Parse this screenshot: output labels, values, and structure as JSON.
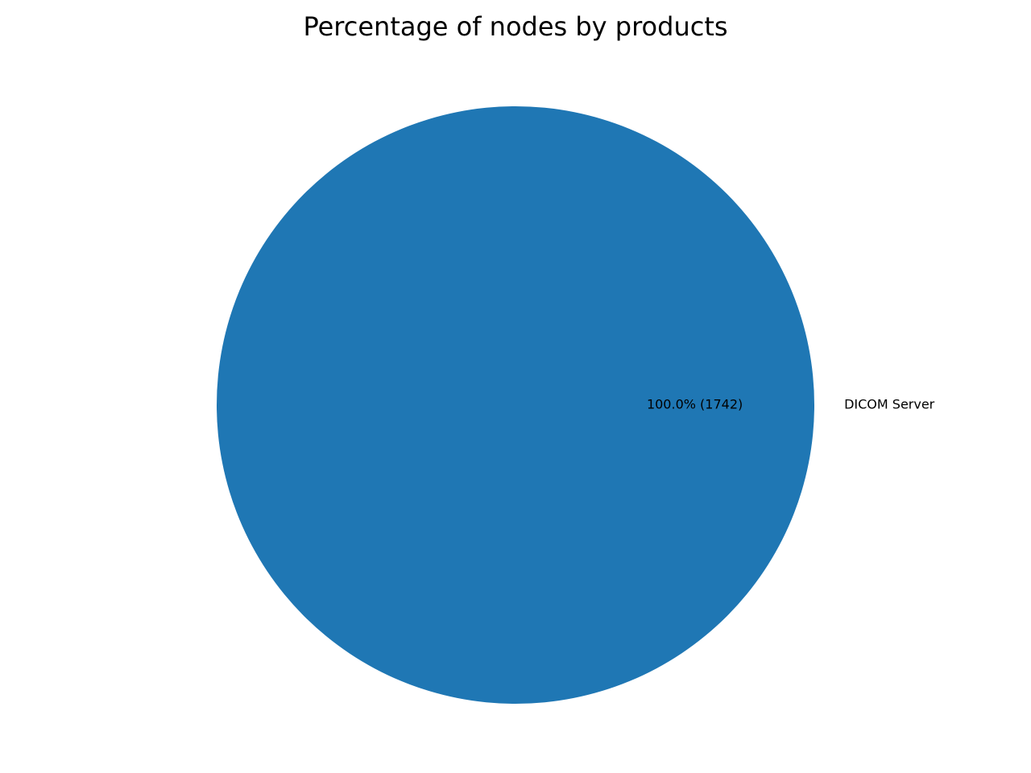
{
  "chart_data": {
    "type": "pie",
    "title": "Percentage of nodes by products",
    "slices": [
      {
        "label": "DICOM Server",
        "value": 1742,
        "percent_label": "100.0% (1742)",
        "color": "#1f77b4"
      }
    ],
    "start_angle": 180,
    "legend": "none"
  }
}
